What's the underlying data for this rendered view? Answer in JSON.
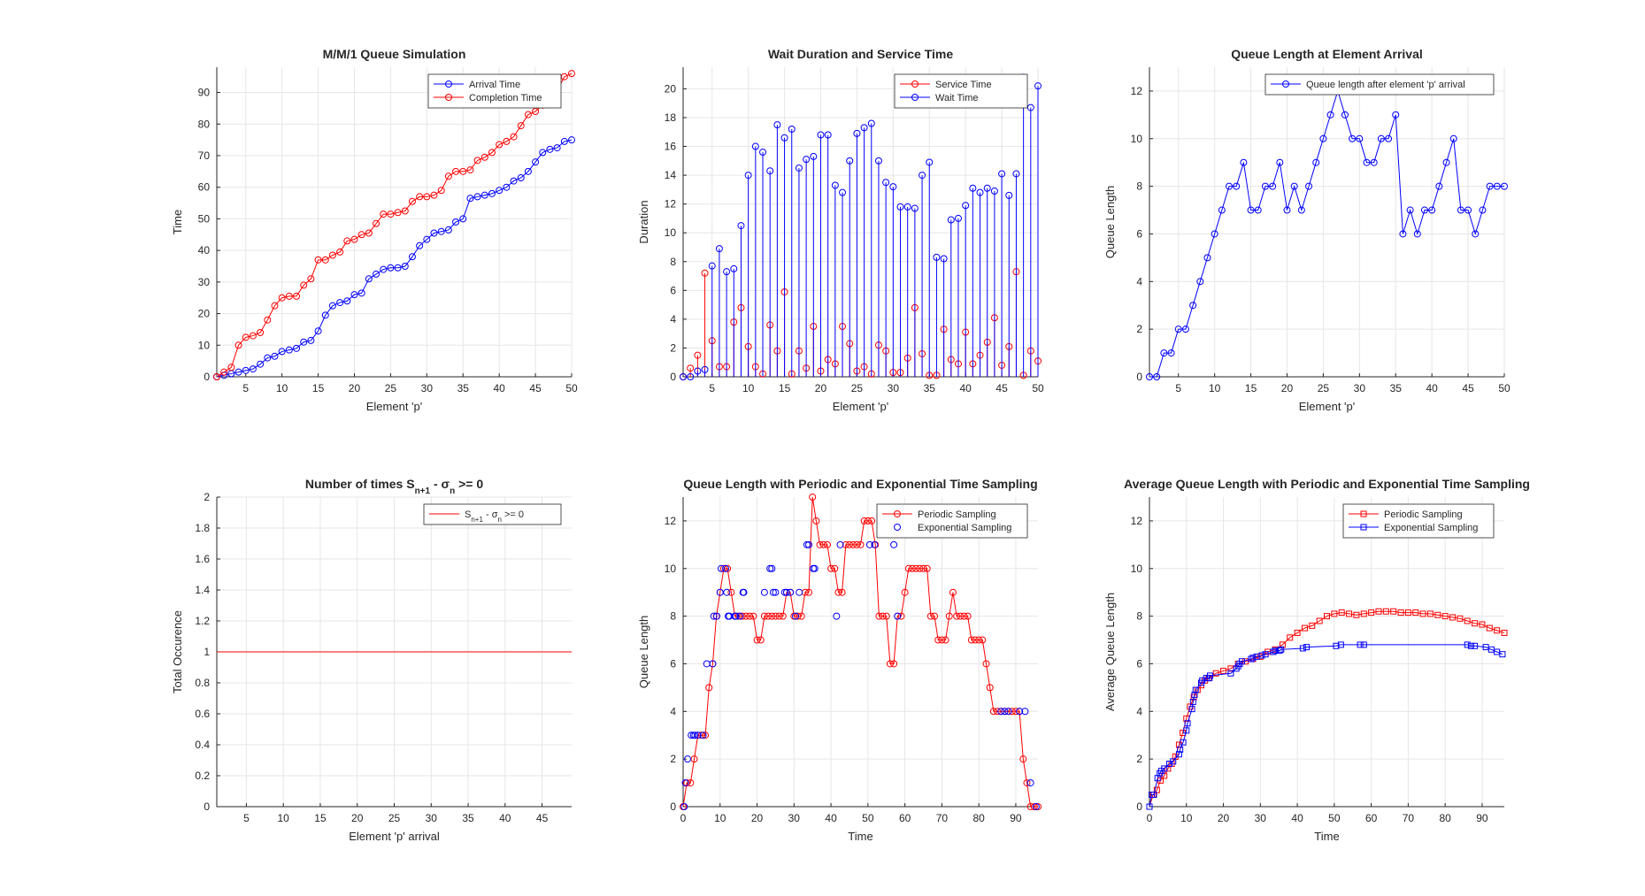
{
  "colors": {
    "red": "#ff0000",
    "blue": "#0000ff",
    "grid": "#e6e6e6",
    "axis": "#262626"
  },
  "chart_data": [
    {
      "type": "line",
      "title": "M/M/1 Queue Simulation",
      "xlabel": "Element 'p'",
      "ylabel": "Time",
      "xlim": [
        1,
        50
      ],
      "ylim": [
        0,
        98
      ],
      "xticks": [
        5,
        10,
        15,
        20,
        25,
        30,
        35,
        40,
        45,
        50
      ],
      "yticks": [
        0,
        10,
        20,
        30,
        40,
        50,
        60,
        70,
        80,
        90
      ],
      "grid": true,
      "legend_location": "top-right",
      "marker": "circle",
      "x": [
        1,
        2,
        3,
        4,
        5,
        6,
        7,
        8,
        9,
        10,
        11,
        12,
        13,
        14,
        15,
        16,
        17,
        18,
        19,
        20,
        21,
        22,
        23,
        24,
        25,
        26,
        27,
        28,
        29,
        30,
        31,
        32,
        33,
        34,
        35,
        36,
        37,
        38,
        39,
        40,
        41,
        42,
        43,
        44,
        45,
        46,
        47,
        48,
        49,
        50
      ],
      "series": [
        {
          "name": "Arrival Time",
          "color": "blue",
          "values": [
            0,
            0.5,
            1,
            1.5,
            2,
            2.5,
            4,
            6,
            6.5,
            8,
            8.5,
            9,
            11,
            11.5,
            14.5,
            19.5,
            22.5,
            23.5,
            24,
            26,
            26.5,
            31,
            32.5,
            34,
            34.5,
            34.5,
            35,
            38,
            41.5,
            43.5,
            45.5,
            46,
            46.5,
            49,
            50,
            56.5,
            57,
            57.5,
            58,
            59,
            60,
            62,
            63,
            65,
            68,
            71,
            72,
            72.5,
            74.5,
            75
          ]
        },
        {
          "name": "Completion Time",
          "color": "red",
          "values": [
            0,
            1.5,
            3,
            10,
            12.5,
            13,
            14,
            18,
            22.5,
            25,
            25.5,
            25.5,
            29,
            31,
            37,
            37,
            38.5,
            39.5,
            43,
            43.5,
            45,
            45.5,
            48.5,
            51.5,
            51.5,
            52,
            52.5,
            55.5,
            57,
            57,
            57.5,
            59,
            63.5,
            65,
            65,
            65.5,
            68.5,
            69.5,
            71,
            73.5,
            74.5,
            76,
            79.5,
            83,
            84,
            86,
            88.5,
            90.5,
            95,
            96
          ]
        }
      ]
    },
    {
      "type": "stem",
      "title": "Wait Duration and Service Time",
      "xlabel": "Element 'p'",
      "ylabel": "Duration",
      "xlim": [
        1,
        50
      ],
      "ylim": [
        0,
        21.5
      ],
      "xticks": [
        5,
        10,
        15,
        20,
        25,
        30,
        35,
        40,
        45,
        50
      ],
      "yticks": [
        0,
        2,
        4,
        6,
        8,
        10,
        12,
        14,
        16,
        18,
        20
      ],
      "grid": true,
      "legend_location": "top-right",
      "marker": "circle",
      "x": [
        1,
        2,
        3,
        4,
        5,
        6,
        7,
        8,
        9,
        10,
        11,
        12,
        13,
        14,
        15,
        16,
        17,
        18,
        19,
        20,
        21,
        22,
        23,
        24,
        25,
        26,
        27,
        28,
        29,
        30,
        31,
        32,
        33,
        34,
        35,
        36,
        37,
        38,
        39,
        40,
        41,
        42,
        43,
        44,
        45,
        46,
        47,
        48,
        49,
        50
      ],
      "series": [
        {
          "name": "Service Time",
          "color": "red",
          "values": [
            0,
            0.6,
            1.5,
            7.2,
            2.5,
            0.7,
            0.7,
            3.8,
            4.8,
            2.1,
            0.7,
            0.2,
            3.6,
            1.8,
            5.9,
            0.2,
            1.8,
            0.6,
            3.5,
            0.4,
            1.2,
            0.9,
            3.5,
            2.3,
            0.4,
            0.7,
            0.2,
            2.2,
            1.8,
            0.3,
            0.3,
            1.3,
            4.8,
            1.6,
            0.1,
            0.1,
            3.3,
            1.2,
            0.9,
            3.1,
            0.9,
            1.5,
            2.4,
            4.1,
            0.8,
            2.1,
            7.3,
            0.1,
            1.8,
            1.1
          ]
        },
        {
          "name": "Wait Time",
          "color": "blue",
          "values": [
            0,
            0,
            0.4,
            0.5,
            7.7,
            8.9,
            7.3,
            7.5,
            10.5,
            14,
            16,
            15.6,
            14.3,
            17.5,
            16.6,
            17.2,
            14.5,
            15.1,
            15.3,
            16.8,
            16.8,
            13.3,
            12.8,
            15,
            16.9,
            17.3,
            17.6,
            15,
            13.5,
            13.2,
            11.8,
            11.8,
            11.7,
            14,
            14.9,
            8.3,
            8.2,
            10.9,
            11,
            11.9,
            13.1,
            12.8,
            13.1,
            12.9,
            14.1,
            12.6,
            14.1,
            20.8,
            18.7,
            20.2
          ]
        }
      ]
    },
    {
      "type": "line",
      "title": "Queue Length at Element Arrival",
      "xlabel": "Element 'p'",
      "ylabel": "Queue Length",
      "xlim": [
        1,
        50
      ],
      "ylim": [
        0,
        13
      ],
      "xticks": [
        5,
        10,
        15,
        20,
        25,
        30,
        35,
        40,
        45,
        50
      ],
      "yticks": [
        0,
        2,
        4,
        6,
        8,
        10,
        12
      ],
      "grid": true,
      "legend_location": "top-right",
      "marker": "circle",
      "x": [
        1,
        2,
        3,
        4,
        5,
        6,
        7,
        8,
        9,
        10,
        11,
        12,
        13,
        14,
        15,
        16,
        17,
        18,
        19,
        20,
        21,
        22,
        23,
        24,
        25,
        26,
        27,
        28,
        29,
        30,
        31,
        32,
        33,
        34,
        35,
        36,
        37,
        38,
        39,
        40,
        41,
        42,
        43,
        44,
        45,
        46,
        47,
        48,
        49,
        50
      ],
      "series": [
        {
          "name": "Queue length after element 'p' arrival",
          "color": "blue",
          "values": [
            0,
            0,
            1,
            1,
            2,
            2,
            3,
            4,
            5,
            6,
            7,
            8,
            8,
            9,
            7,
            7,
            8,
            8,
            9,
            7,
            8,
            7,
            8,
            9,
            10,
            11,
            12,
            11,
            10,
            10,
            9,
            9,
            10,
            10,
            11,
            6,
            7,
            6,
            7,
            7,
            8,
            9,
            10,
            7,
            7,
            6,
            7,
            8,
            8,
            8
          ]
        }
      ]
    },
    {
      "type": "line",
      "title": "Number of times  S n+1 - σ  n  >= 0",
      "title_parts": {
        "main": "Number of times  S",
        "sub1": "n+1",
        "mid": " - σ",
        "sub2": "n",
        "end": " >= 0"
      },
      "xlabel": "Element 'p' arrival",
      "ylabel": "Total Occurence",
      "xlim": [
        1,
        49
      ],
      "ylim": [
        0,
        2
      ],
      "xticks": [
        5,
        10,
        15,
        20,
        25,
        30,
        35,
        40,
        45
      ],
      "yticks": [
        0,
        0.2,
        0.4,
        0.6,
        0.8,
        1,
        1.2,
        1.4,
        1.6,
        1.8,
        2
      ],
      "grid": true,
      "legend_location": "top-right",
      "marker": "none",
      "x": [
        1,
        49
      ],
      "series": [
        {
          "name": "S n+1 - σ n >= 0",
          "color": "red",
          "values": [
            1,
            1
          ]
        }
      ]
    },
    {
      "type": "line",
      "title": "Queue Length with Periodic and Exponential Time Sampling",
      "xlabel": "Time",
      "ylabel": "Queue Length",
      "xlim": [
        0,
        96
      ],
      "ylim": [
        0,
        13
      ],
      "xticks": [
        0,
        10,
        20,
        30,
        40,
        50,
        60,
        70,
        80,
        90
      ],
      "yticks": [
        0,
        2,
        4,
        6,
        8,
        10,
        12
      ],
      "grid": true,
      "legend_location": "top-right",
      "series": [
        {
          "name": "Periodic Sampling",
          "color": "red",
          "marker": "circle",
          "line": true,
          "x": [
            0,
            1,
            2,
            3,
            4,
            5,
            6,
            7,
            8,
            9,
            10,
            11,
            12,
            13,
            14,
            15,
            16,
            17,
            18,
            19,
            20,
            21,
            22,
            23,
            24,
            25,
            26,
            27,
            28,
            29,
            30,
            31,
            32,
            33,
            34,
            35,
            36,
            37,
            38,
            39,
            40,
            41,
            42,
            43,
            44,
            45,
            46,
            47,
            48,
            49,
            50,
            51,
            52,
            53,
            54,
            55,
            56,
            57,
            58,
            59,
            60,
            61,
            62,
            63,
            64,
            65,
            66,
            67,
            68,
            69,
            70,
            71,
            72,
            73,
            74,
            75,
            76,
            77,
            78,
            79,
            80,
            81,
            82,
            83,
            84,
            85,
            86,
            87,
            88,
            89,
            90,
            91,
            92,
            93,
            94,
            95,
            96
          ],
          "values": [
            0,
            1,
            1,
            2,
            3,
            3,
            3,
            5,
            6,
            8,
            9,
            10,
            10,
            9,
            8,
            8,
            8,
            8,
            8,
            8,
            7,
            7,
            8,
            8,
            8,
            8,
            8,
            8,
            9,
            9,
            8,
            8,
            8,
            9,
            9,
            13,
            12,
            11,
            11,
            11,
            10,
            10,
            9,
            9,
            11,
            11,
            11,
            11,
            11,
            12,
            12,
            12,
            11,
            8,
            8,
            8,
            6,
            6,
            8,
            8,
            9,
            10,
            10,
            10,
            10,
            10,
            10,
            8,
            8,
            7,
            7,
            7,
            8,
            9,
            8,
            8,
            8,
            8,
            7,
            7,
            7,
            7,
            6,
            5,
            4,
            4,
            4,
            4,
            4,
            4,
            4,
            4,
            2,
            1,
            0,
            0,
            0
          ]
        },
        {
          "name": "Exponential Sampling",
          "color": "blue",
          "marker": "circle",
          "line": false,
          "x": [
            0.3,
            0.6,
            1.2,
            2.2,
            2.8,
            3.2,
            4,
            5.4,
            6.4,
            8,
            8.3,
            9.1,
            10,
            10.3,
            11.5,
            11.8,
            12.2,
            12.5,
            14,
            14.3,
            15.4,
            16.2,
            16.4,
            22,
            23.5,
            24,
            24.4,
            25,
            27.5,
            28,
            29,
            30.4,
            31.4,
            33.5,
            34,
            35.2,
            35.6,
            41.5,
            42.5,
            50.5,
            51.8,
            57,
            58,
            86,
            87,
            88,
            91,
            92.5,
            94,
            95.5
          ],
          "values": [
            0,
            1,
            2,
            3,
            3,
            3,
            3,
            3,
            6,
            6,
            8,
            8,
            9,
            10,
            10,
            9,
            8,
            8,
            8,
            8,
            8,
            9,
            9,
            9,
            10,
            10,
            9,
            9,
            9,
            9,
            9,
            8,
            9,
            11,
            11,
            10,
            10,
            8,
            11,
            11,
            11,
            11,
            8,
            4,
            4,
            4,
            4,
            4,
            1,
            0
          ]
        }
      ]
    },
    {
      "type": "line",
      "title": "Average Queue Length with Periodic and Exponential Time Sampling",
      "xlabel": "Time",
      "ylabel": "Average Queue Length",
      "xlim": [
        0,
        96
      ],
      "ylim": [
        0,
        13
      ],
      "xticks": [
        0,
        10,
        20,
        30,
        40,
        50,
        60,
        70,
        80,
        90
      ],
      "yticks": [
        0,
        2,
        4,
        6,
        8,
        10,
        12
      ],
      "grid": true,
      "legend_location": "top-right",
      "series": [
        {
          "name": "Periodic Sampling",
          "color": "red",
          "marker": "square",
          "x": [
            0,
            1,
            2,
            3,
            4,
            5,
            6,
            7,
            8,
            9,
            10,
            11,
            12,
            13,
            14,
            15,
            16,
            18,
            20,
            22,
            24,
            26,
            28,
            30,
            32,
            34,
            36,
            38,
            40,
            42,
            44,
            46,
            48,
            50,
            52,
            54,
            56,
            58,
            60,
            62,
            64,
            66,
            68,
            70,
            72,
            74,
            76,
            78,
            80,
            82,
            84,
            86,
            88,
            90,
            92,
            94,
            96
          ],
          "values": [
            0,
            0.5,
            0.7,
            1.1,
            1.3,
            1.6,
            1.8,
            2.1,
            2.6,
            3.1,
            3.7,
            4.2,
            4.6,
            4.9,
            5.1,
            5.3,
            5.4,
            5.6,
            5.7,
            5.8,
            6,
            6.1,
            6.2,
            6.3,
            6.5,
            6.6,
            6.8,
            7.1,
            7.3,
            7.5,
            7.6,
            7.8,
            8,
            8.1,
            8.15,
            8.1,
            8.05,
            8.1,
            8.15,
            8.2,
            8.2,
            8.2,
            8.15,
            8.15,
            8.15,
            8.1,
            8.1,
            8.05,
            8,
            7.95,
            7.9,
            7.8,
            7.7,
            7.65,
            7.5,
            7.4,
            7.3
          ]
        },
        {
          "name": "Exponential Sampling",
          "color": "blue",
          "marker": "square",
          "x": [
            0,
            0.6,
            1.2,
            2.2,
            2.8,
            3.2,
            4,
            5.4,
            6.4,
            8,
            8.3,
            9.1,
            10,
            10.3,
            11.5,
            11.8,
            12.2,
            12.5,
            14,
            14.3,
            15.4,
            16.2,
            16.4,
            22,
            23.5,
            24,
            24.4,
            25,
            27.5,
            28,
            29,
            30.4,
            31.4,
            33.5,
            34,
            35.2,
            35.6,
            41.5,
            42.5,
            50.5,
            51.8,
            57,
            58,
            86,
            87,
            88,
            91,
            92.5,
            94,
            95.5
          ],
          "values": [
            0,
            0.5,
            0.5,
            1.2,
            1.4,
            1.5,
            1.6,
            1.8,
            1.9,
            2.2,
            2.4,
            2.7,
            3.2,
            3.5,
            4.1,
            4.4,
            4.7,
            4.9,
            5.2,
            5.3,
            5.4,
            5.4,
            5.5,
            5.6,
            5.8,
            5.9,
            6.0,
            6.1,
            6.2,
            6.25,
            6.3,
            6.35,
            6.4,
            6.5,
            6.55,
            6.55,
            6.6,
            6.65,
            6.7,
            6.75,
            6.8,
            6.8,
            6.8,
            6.8,
            6.75,
            6.75,
            6.7,
            6.6,
            6.5,
            6.4
          ]
        }
      ]
    }
  ]
}
